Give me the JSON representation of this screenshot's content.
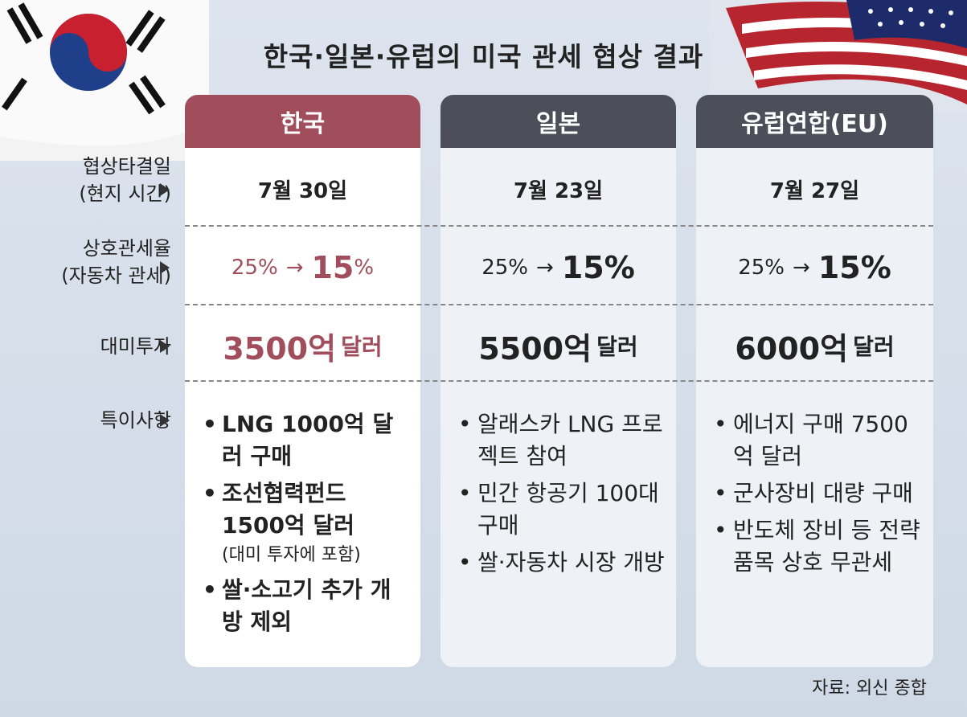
{
  "title": "한국·일본·유럽의 미국 관세 협상 결과",
  "row_labels": {
    "date_line1": "협상타결일",
    "date_line2": "(현지 시간)",
    "rate_line1": "상호관세율",
    "rate_line2": "(자동차 관세)",
    "invest": "대미투자",
    "notes": "특이사항"
  },
  "columns": [
    {
      "name": "한국",
      "date": "7월 30일",
      "rate_from": "25%",
      "rate_to": "15",
      "rate_pct": "%",
      "invest_num": "3500억",
      "invest_unit": "달러",
      "notes": [
        {
          "text": "LNG 1000억 달러 구매"
        },
        {
          "text": "조선협력펀드 1500억 달러",
          "sub": "(대미 투자에 포함)"
        },
        {
          "text": "쌀·소고기 추가 개방 제외"
        }
      ]
    },
    {
      "name": "일본",
      "date": "7월 23일",
      "rate_from": "25%",
      "rate_to": "15",
      "rate_pct": "%",
      "invest_num": "5500억",
      "invest_unit": "달러",
      "notes": [
        {
          "text": "알래스카 LNG 프로젝트 참여"
        },
        {
          "text": "민간 항공기 100대 구매"
        },
        {
          "text": "쌀·자동차 시장 개방"
        }
      ]
    },
    {
      "name": "유럽연합(EU)",
      "date": "7월 27일",
      "rate_from": "25%",
      "rate_to": "15",
      "rate_pct": "%",
      "invest_num": "6000억",
      "invest_unit": "달러",
      "notes": [
        {
          "text": "에너지 구매 7500억 달러"
        },
        {
          "text": "군사장비 대량 구매"
        },
        {
          "text": "반도체 장비 등 전략품목 상호 무관세"
        }
      ]
    }
  ],
  "rate_arrow": "→",
  "source": "자료: 외신 종합",
  "colors": {
    "korea": "#a14e5c",
    "header_dark": "#4c4f59",
    "background": "#d3dce8"
  }
}
